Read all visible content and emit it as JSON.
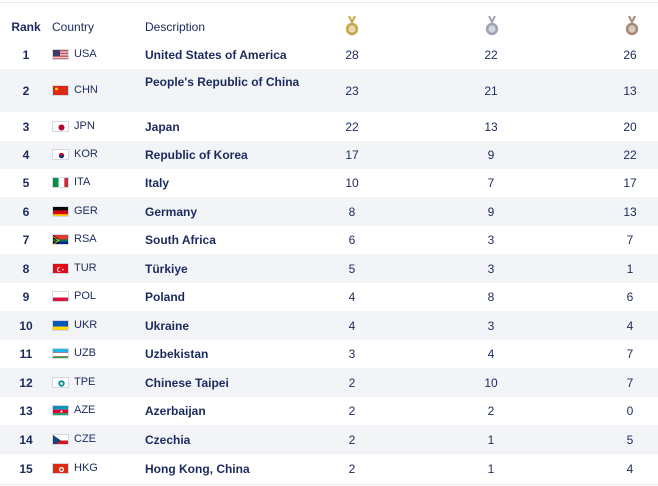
{
  "header": {
    "rank_label": "Rank",
    "country_label": "Country",
    "description_label": "Description",
    "gold_icon": "gold-medal-icon",
    "silver_icon": "silver-medal-icon",
    "bronze_icon": "bronze-medal-icon"
  },
  "colors": {
    "text": "#1b2a5c",
    "alt_row": "#f3f4f8",
    "gold": "#c9a84c",
    "silver": "#9ea4b2",
    "bronze": "#a88a78"
  },
  "rows": [
    {
      "rank": "1",
      "code": "USA",
      "flag": "usa-flag-icon",
      "desc": "United States of America",
      "gold": "28",
      "silver": "22",
      "bronze": "26"
    },
    {
      "rank": "2",
      "code": "CHN",
      "flag": "chn-flag-icon",
      "desc": "People's Republic of China",
      "gold": "23",
      "silver": "21",
      "bronze": "13"
    },
    {
      "rank": "3",
      "code": "JPN",
      "flag": "jpn-flag-icon",
      "desc": "Japan",
      "gold": "22",
      "silver": "13",
      "bronze": "20"
    },
    {
      "rank": "4",
      "code": "KOR",
      "flag": "kor-flag-icon",
      "desc": "Republic of Korea",
      "gold": "17",
      "silver": "9",
      "bronze": "22"
    },
    {
      "rank": "5",
      "code": "ITA",
      "flag": "ita-flag-icon",
      "desc": "Italy",
      "gold": "10",
      "silver": "7",
      "bronze": "17"
    },
    {
      "rank": "6",
      "code": "GER",
      "flag": "ger-flag-icon",
      "desc": "Germany",
      "gold": "8",
      "silver": "9",
      "bronze": "13"
    },
    {
      "rank": "7",
      "code": "RSA",
      "flag": "rsa-flag-icon",
      "desc": "South Africa",
      "gold": "6",
      "silver": "3",
      "bronze": "7"
    },
    {
      "rank": "8",
      "code": "TUR",
      "flag": "tur-flag-icon",
      "desc": "Türkiye",
      "gold": "5",
      "silver": "3",
      "bronze": "1"
    },
    {
      "rank": "9",
      "code": "POL",
      "flag": "pol-flag-icon",
      "desc": "Poland",
      "gold": "4",
      "silver": "8",
      "bronze": "6"
    },
    {
      "rank": "10",
      "code": "UKR",
      "flag": "ukr-flag-icon",
      "desc": "Ukraine",
      "gold": "4",
      "silver": "3",
      "bronze": "4"
    },
    {
      "rank": "11",
      "code": "UZB",
      "flag": "uzb-flag-icon",
      "desc": "Uzbekistan",
      "gold": "3",
      "silver": "4",
      "bronze": "7"
    },
    {
      "rank": "12",
      "code": "TPE",
      "flag": "tpe-flag-icon",
      "desc": "Chinese Taipei",
      "gold": "2",
      "silver": "10",
      "bronze": "7"
    },
    {
      "rank": "13",
      "code": "AZE",
      "flag": "aze-flag-icon",
      "desc": "Azerbaijan",
      "gold": "2",
      "silver": "2",
      "bronze": "0"
    },
    {
      "rank": "14",
      "code": "CZE",
      "flag": "cze-flag-icon",
      "desc": "Czechia",
      "gold": "2",
      "silver": "1",
      "bronze": "5"
    },
    {
      "rank": "15",
      "code": "HKG",
      "flag": "hkg-flag-icon",
      "desc": "Hong Kong, China",
      "gold": "2",
      "silver": "1",
      "bronze": "4"
    }
  ]
}
